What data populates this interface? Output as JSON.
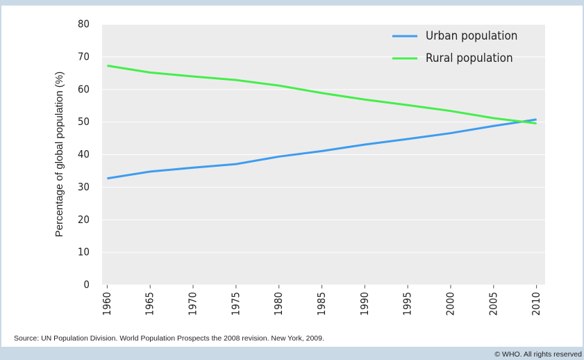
{
  "chart_data": {
    "type": "line",
    "y_label": "Percentage of global population (%)",
    "x": [
      1960,
      1965,
      1970,
      1975,
      1980,
      1985,
      1990,
      1995,
      2000,
      2005,
      2010
    ],
    "series": [
      {
        "name": "Urban population",
        "color": "#3d9cf0",
        "values": [
          32.7,
          34.8,
          36.0,
          37.1,
          39.4,
          41.1,
          43.1,
          44.8,
          46.6,
          48.8,
          50.8
        ]
      },
      {
        "name": "Rural population",
        "color": "#44ee4a",
        "values": [
          67.3,
          65.2,
          64.0,
          62.9,
          61.2,
          58.9,
          56.9,
          55.2,
          53.4,
          51.2,
          49.6
        ]
      }
    ],
    "xlim": [
      1959.4,
      2011
    ],
    "xticks": [
      1960,
      1965,
      1970,
      1975,
      1980,
      1985,
      1990,
      1995,
      2000,
      2005,
      2010
    ],
    "ylim": [
      0,
      80
    ],
    "yticks": [
      0,
      10,
      20,
      30,
      40,
      50,
      60,
      70,
      80
    ],
    "grid": true,
    "legend": "top-right",
    "source": "Source: UN Population Division. World Population Prospects the 2008 revision. New York, 2009.",
    "copyright": "© WHO. All rights reserved"
  }
}
